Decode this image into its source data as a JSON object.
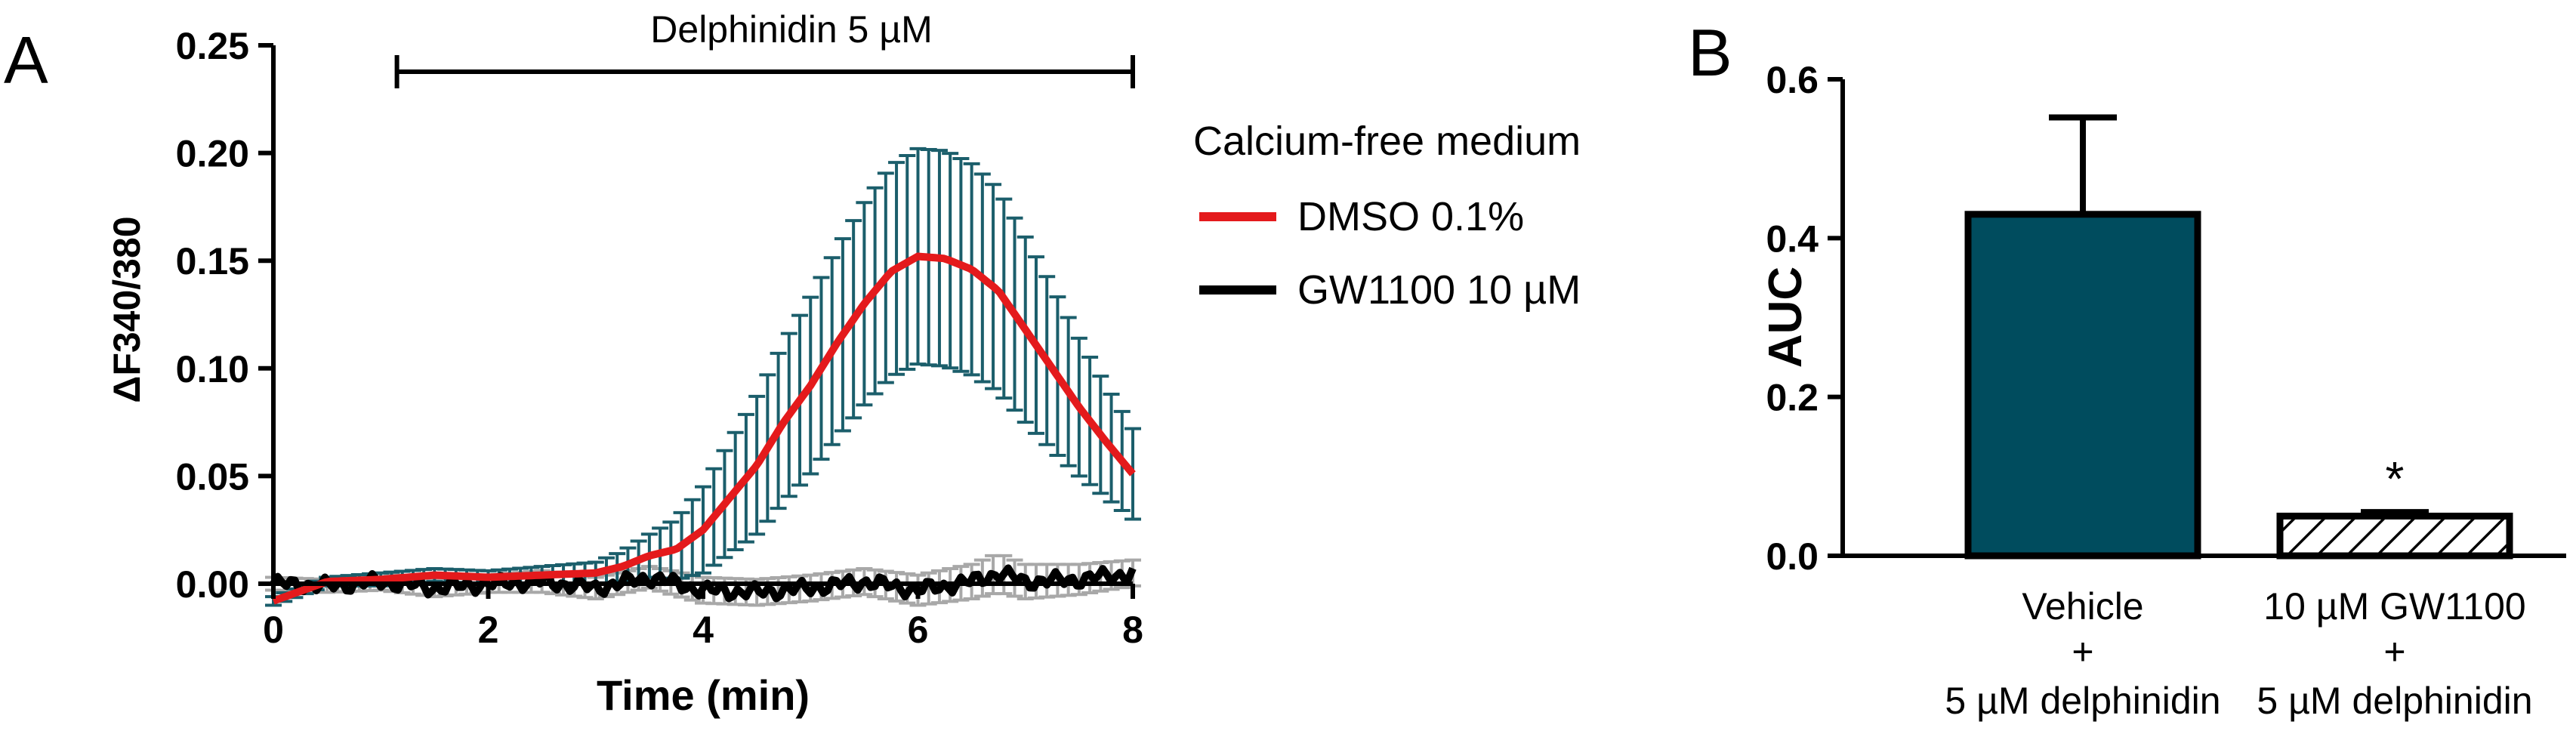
{
  "chart_data": [
    {
      "type": "line",
      "panel_label": "A",
      "xlabel": "Time (min)",
      "ylabel": "ΔF340/380",
      "xlim": [
        0,
        8
      ],
      "ylim": [
        0,
        0.25
      ],
      "xticks": [
        "0",
        "2",
        "4",
        "6",
        "8"
      ],
      "yticks": [
        "0.00",
        "0.05",
        "0.10",
        "0.15",
        "0.20",
        "0.25"
      ],
      "annotation": {
        "text": "Delphinidin 5 µM",
        "x_start": 1.15,
        "x_end": 8
      },
      "legend": {
        "title": "Calcium-free medium",
        "placement": "right"
      },
      "colors": {
        "dmso": "#e41a1c",
        "gw": "#000000",
        "dmso_error": "#1b5e6b",
        "gw_error": "#a8a8a8"
      },
      "series": [
        {
          "name": "DMSO 0.1%",
          "x": [
            0,
            0.5,
            1,
            1.5,
            2,
            2.5,
            3,
            3.25,
            3.5,
            3.75,
            4,
            4.25,
            4.5,
            4.75,
            5,
            5.25,
            5.5,
            5.75,
            6,
            6.25,
            6.5,
            6.75,
            7,
            7.25,
            7.5,
            7.75,
            8
          ],
          "y": [
            -0.008,
            0.001,
            0.002,
            0.004,
            0.003,
            0.004,
            0.005,
            0.008,
            0.013,
            0.016,
            0.025,
            0.04,
            0.055,
            0.075,
            0.092,
            0.112,
            0.13,
            0.145,
            0.152,
            0.151,
            0.146,
            0.136,
            0.118,
            0.1,
            0.082,
            0.066,
            0.051
          ],
          "error": [
            0.002,
            0.002,
            0.003,
            0.003,
            0.003,
            0.004,
            0.005,
            0.007,
            0.01,
            0.014,
            0.02,
            0.026,
            0.032,
            0.037,
            0.041,
            0.044,
            0.047,
            0.049,
            0.05,
            0.05,
            0.049,
            0.047,
            0.043,
            0.038,
            0.032,
            0.026,
            0.021
          ]
        },
        {
          "name": "GW1100 10 µM",
          "x": [
            0,
            0.5,
            1,
            1.5,
            2,
            2.5,
            3,
            3.5,
            4,
            4.5,
            5,
            5.5,
            6,
            6.5,
            6.75,
            7,
            7.5,
            8
          ],
          "y": [
            0.0,
            -0.001,
            0.001,
            -0.002,
            0.0,
            0.001,
            -0.002,
            0.003,
            -0.003,
            -0.004,
            -0.002,
            0.001,
            -0.003,
            0.001,
            0.005,
            0.001,
            0.002,
            0.005
          ],
          "error": [
            0.003,
            0.003,
            0.004,
            0.004,
            0.004,
            0.005,
            0.005,
            0.005,
            0.006,
            0.006,
            0.006,
            0.006,
            0.007,
            0.008,
            0.009,
            0.008,
            0.007,
            0.006
          ]
        }
      ]
    },
    {
      "type": "bar",
      "panel_label": "B",
      "ylabel": "AUC",
      "ylim": [
        0,
        0.6
      ],
      "yticks": [
        "0.0",
        "0.2",
        "0.4",
        "0.6"
      ],
      "categories": [
        [
          "Vehicle",
          "+",
          "5 µM delphinidin"
        ],
        [
          "10 µM GW1100",
          "+",
          "5 µM delphinidin"
        ]
      ],
      "values": [
        0.43,
        0.05
      ],
      "errors": [
        0.122,
        0.005
      ],
      "significance": [
        "",
        "*"
      ],
      "colors": {
        "vehicle_fill": "#004c5e",
        "edge": "#000000"
      }
    }
  ]
}
